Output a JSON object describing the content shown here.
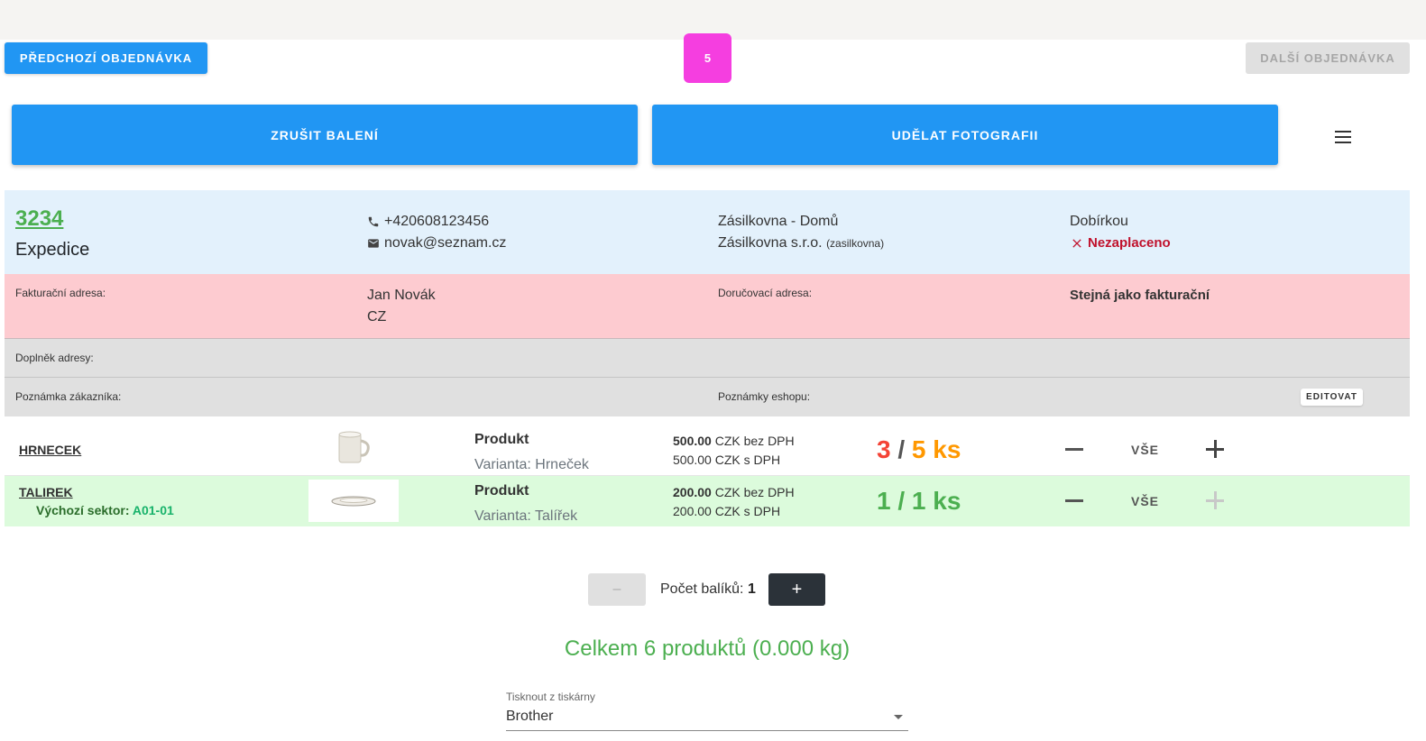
{
  "nav": {
    "prev_label": "PŘEDCHOZÍ OBJEDNÁVKA",
    "count": "5",
    "next_label": "DALŠÍ OBJEDNÁVKA"
  },
  "actions": {
    "cancel_label": "ZRUŠIT BALENÍ",
    "photo_label": "UDĚLAT FOTOGRAFII",
    "menu_icon": "hamburger-menu-icon"
  },
  "order": {
    "number": "3234",
    "status": "Expedice",
    "phone": "+420608123456",
    "email": "novak@seznam.cz",
    "shipping_method": "Zásilkovna - Domů",
    "carrier": "Zásilkovna s.r.o.",
    "carrier_code": "(zasilkovna)",
    "payment_method": "Dobírkou",
    "payment_status": "Nezaplaceno",
    "colors": {
      "paid_status": "#c0112c",
      "order_number": "#4caf50"
    }
  },
  "address": {
    "billing_label": "Fakturační adresa:",
    "billing_name": "Jan Novák",
    "billing_country": "CZ",
    "delivery_label": "Doručovací adresa:",
    "delivery_value": "Stejná jako fakturační",
    "supplement_label": "Doplněk adresy:",
    "customer_note_label": "Poznámka zákazníka:",
    "shop_note_label": "Poznámky eshopu:",
    "edit_label": "EDITOVAT"
  },
  "products": [
    {
      "code": "HRNECEK",
      "title": "Produkt",
      "variant": "Varianta: Hrneček",
      "price_ex_vat": "500.00",
      "price_ex_vat_suffix": "CZK bez DPH",
      "price_inc_vat": "500.00 CZK s DPH",
      "qty_done": "3",
      "qty_sep": "/",
      "qty_total": "5 ks",
      "all_label": "VŠE"
    },
    {
      "code": "TALIREK",
      "sector_label": "Výchozí sektor:",
      "sector": "A01-01",
      "title": "Produkt",
      "variant": "Varianta: Talířek",
      "price_ex_vat": "200.00",
      "price_ex_vat_suffix": "CZK bez DPH",
      "price_inc_vat": "200.00 CZK s DPH",
      "qty_done": "1",
      "qty_sep": "/",
      "qty_total": "1 ks",
      "all_label": "VŠE"
    }
  ],
  "packages": {
    "minus": "–",
    "label": "Počet balíků:",
    "count": "1",
    "plus": "+"
  },
  "summary": {
    "total": "Celkem 6 produktů (0.000 kg)"
  },
  "printer": {
    "label": "Tisknout z tiskárny",
    "value": "Brother"
  }
}
